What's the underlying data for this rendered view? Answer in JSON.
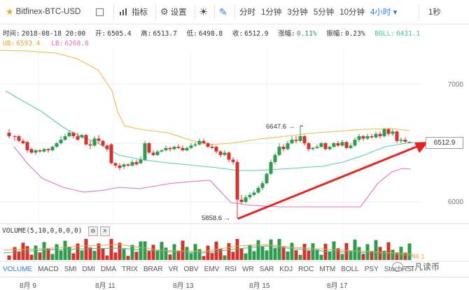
{
  "toolbar": {
    "symbol": "Bitfinex-BTC-USD",
    "indicator_label": "指标",
    "settings_label": "设置",
    "periods": [
      "分时",
      "1分钟",
      "3分钟",
      "5分钟",
      "10分钟",
      "4小时"
    ],
    "active_period": "4小时",
    "interval": "1秒"
  },
  "info": {
    "time_label": "时间:",
    "time": "2018-08-18 20:00",
    "open_label": "开:",
    "open": "6505.4",
    "high_label": "高:",
    "high": "6513.7",
    "low_label": "低:",
    "low": "6498.8",
    "close_label": "收:",
    "close": "6512.9",
    "change_label": "涨幅:",
    "change": "0.11%",
    "amp_label": "振幅:",
    "amp": "0.23%",
    "boll_label": "BOLL:",
    "boll": "6431.1",
    "ub_label": "UB:",
    "ub": "6593.4",
    "lb_label": "LB:",
    "lb": "6268.8"
  },
  "price_axis": [
    "7000",
    "6000"
  ],
  "current_price": "6512.9",
  "annotations": {
    "high": "6647.6 →",
    "low": "5858.6 →"
  },
  "volume": {
    "label": "VOLUME(5,10,0,0,0,0)",
    "value": "46.1"
  },
  "indicators": [
    "VOLUME",
    "MACD",
    "SMI",
    "DMI",
    "DMA",
    "TRIX",
    "BRAR",
    "VR",
    "OBV",
    "EMV",
    "RSI",
    "WR",
    "SAR",
    "KDJ",
    "ROC",
    "MTM",
    "BOLL",
    "PSY",
    "StochRSI"
  ],
  "active_indicator": "VOLUME",
  "x_labels": [
    "8月 9",
    "8月 11",
    "8月 13",
    "8月 15",
    "8月 17"
  ],
  "watermark": "一凡读币",
  "colors": {
    "up": "#2e9b4f",
    "down": "#d0342c",
    "ub": "#f5b642",
    "lb": "#e070c8",
    "boll": "#4fd1b0",
    "accent": "#2f7bd8",
    "arrow": "#e8231f"
  }
}
